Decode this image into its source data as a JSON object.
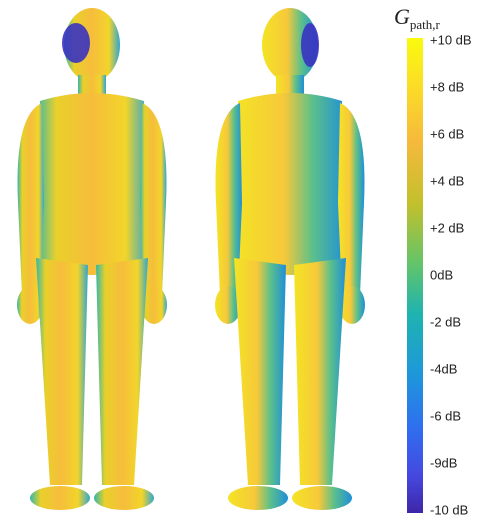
{
  "colorbar": {
    "title": {
      "main": "G",
      "sub": "path,r"
    },
    "labels": [
      "+10 dB",
      "+8 dB",
      "+6 dB",
      "+4 dB",
      "+2 dB",
      "0dB",
      "-2 dB",
      "-4dB",
      "-6 dB",
      "-9dB",
      "-10 dB"
    ]
  }
}
